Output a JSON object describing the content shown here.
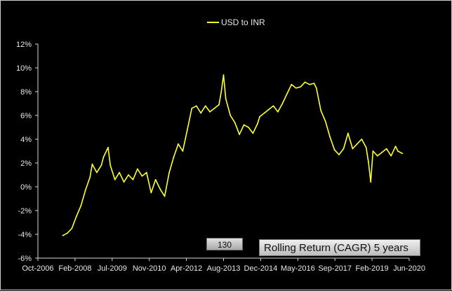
{
  "chart_data": {
    "type": "line",
    "title": "",
    "xlabel": "",
    "ylabel": "",
    "x_tick_labels": [
      "Oct-2006",
      "Feb-2008",
      "Jul-2009",
      "Nov-2010",
      "Apr-2012",
      "Aug-2013",
      "Dec-2014",
      "May-2016",
      "Sep-2017",
      "Feb-2019",
      "Jun-2020"
    ],
    "y_tick_labels": [
      "-6%",
      "-4%",
      "-2%",
      "0%",
      "2%",
      "4%",
      "6%",
      "8%",
      "10%",
      "12%"
    ],
    "ylim": [
      -6,
      12
    ],
    "xlim": [
      "2006-10",
      "2020-06"
    ],
    "legend": {
      "position": "top",
      "entries": [
        "USD to INR"
      ]
    },
    "line_color": "#ffff33",
    "grid": false,
    "series": [
      {
        "name": "USD to INR",
        "points": [
          [
            "2007-09",
            -4.1
          ],
          [
            "2007-11",
            -3.9
          ],
          [
            "2008-01",
            -3.5
          ],
          [
            "2008-03",
            -2.5
          ],
          [
            "2008-05",
            -1.6
          ],
          [
            "2008-07",
            -0.3
          ],
          [
            "2008-09",
            0.8
          ],
          [
            "2008-10",
            1.9
          ],
          [
            "2008-12",
            1.2
          ],
          [
            "2009-02",
            1.8
          ],
          [
            "2009-03",
            2.5
          ],
          [
            "2009-05",
            3.3
          ],
          [
            "2009-06",
            1.8
          ],
          [
            "2009-08",
            0.6
          ],
          [
            "2009-10",
            1.2
          ],
          [
            "2009-12",
            0.4
          ],
          [
            "2010-02",
            1.0
          ],
          [
            "2010-04",
            0.6
          ],
          [
            "2010-06",
            1.5
          ],
          [
            "2010-08",
            0.9
          ],
          [
            "2010-10",
            1.2
          ],
          [
            "2010-12",
            -0.5
          ],
          [
            "2011-02",
            0.6
          ],
          [
            "2011-04",
            -0.2
          ],
          [
            "2011-06",
            -0.8
          ],
          [
            "2011-08",
            1.2
          ],
          [
            "2011-10",
            2.5
          ],
          [
            "2011-12",
            3.6
          ],
          [
            "2012-02",
            3.0
          ],
          [
            "2012-04",
            4.8
          ],
          [
            "2012-06",
            6.6
          ],
          [
            "2012-08",
            6.8
          ],
          [
            "2012-10",
            6.2
          ],
          [
            "2012-12",
            6.8
          ],
          [
            "2013-02",
            6.3
          ],
          [
            "2013-04",
            6.6
          ],
          [
            "2013-06",
            6.9
          ],
          [
            "2013-07",
            8.0
          ],
          [
            "2013-08",
            9.4
          ],
          [
            "2013-09",
            7.4
          ],
          [
            "2013-11",
            6.0
          ],
          [
            "2014-01",
            5.4
          ],
          [
            "2014-03",
            4.4
          ],
          [
            "2014-05",
            5.2
          ],
          [
            "2014-07",
            5.0
          ],
          [
            "2014-09",
            4.5
          ],
          [
            "2014-11",
            5.3
          ],
          [
            "2014-12",
            5.9
          ],
          [
            "2015-02",
            6.2
          ],
          [
            "2015-04",
            6.5
          ],
          [
            "2015-06",
            6.8
          ],
          [
            "2015-08",
            6.3
          ],
          [
            "2015-10",
            7.0
          ],
          [
            "2015-12",
            7.8
          ],
          [
            "2016-02",
            8.6
          ],
          [
            "2016-04",
            8.3
          ],
          [
            "2016-06",
            8.4
          ],
          [
            "2016-08",
            8.8
          ],
          [
            "2016-10",
            8.6
          ],
          [
            "2016-12",
            8.7
          ],
          [
            "2017-01",
            8.3
          ],
          [
            "2017-03",
            6.4
          ],
          [
            "2017-05",
            5.5
          ],
          [
            "2017-07",
            4.2
          ],
          [
            "2017-09",
            3.1
          ],
          [
            "2017-11",
            2.7
          ],
          [
            "2018-01",
            3.2
          ],
          [
            "2018-03",
            4.5
          ],
          [
            "2018-05",
            3.2
          ],
          [
            "2018-07",
            3.6
          ],
          [
            "2018-09",
            4.0
          ],
          [
            "2018-11",
            3.3
          ],
          [
            "2018-12",
            2.1
          ],
          [
            "2019-01",
            0.4
          ],
          [
            "2019-02",
            3.0
          ],
          [
            "2019-04",
            2.6
          ],
          [
            "2019-06",
            2.9
          ],
          [
            "2019-08",
            3.2
          ],
          [
            "2019-10",
            2.6
          ],
          [
            "2019-12",
            3.4
          ],
          [
            "2020-01",
            3.0
          ],
          [
            "2020-03",
            2.8
          ]
        ]
      }
    ]
  },
  "overlay": {
    "counter": "130",
    "caption": "Rolling Return (CAGR) 5 years"
  }
}
